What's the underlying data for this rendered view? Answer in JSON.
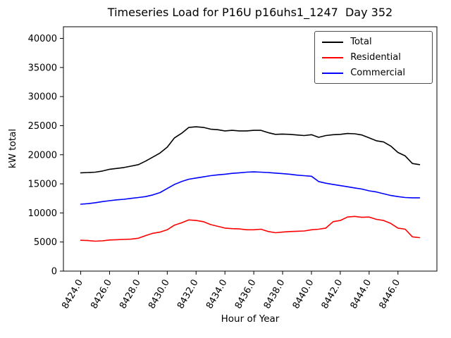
{
  "chart_data": {
    "type": "line",
    "title": "Timeseries Load for P16U p16uhs1_1247  Day 352",
    "xlabel": "Hour of Year",
    "ylabel": "kW total",
    "grid": false,
    "legend_position": "upper right",
    "xlim": [
      8422.8,
      8448.7
    ],
    "ylim": [
      0,
      42000
    ],
    "yticks": [
      0,
      5000,
      10000,
      15000,
      20000,
      25000,
      30000,
      35000,
      40000
    ],
    "ytick_labels": [
      "0",
      "5000",
      "10000",
      "15000",
      "20000",
      "25000",
      "30000",
      "35000",
      "40000"
    ],
    "xticks": [
      8424,
      8426,
      8428,
      8430,
      8432,
      8434,
      8436,
      8438,
      8440,
      8442,
      8444,
      8446
    ],
    "xtick_labels": [
      "8424.0",
      "8426.0",
      "8428.0",
      "8430.0",
      "8432.0",
      "8434.0",
      "8436.0",
      "8438.0",
      "8440.0",
      "8442.0",
      "8444.0",
      "8446.0"
    ],
    "x": [
      8424.0,
      8424.5,
      8425.0,
      8425.5,
      8426.0,
      8426.5,
      8427.0,
      8427.5,
      8428.0,
      8428.5,
      8429.0,
      8429.5,
      8430.0,
      8430.5,
      8431.0,
      8431.5,
      8432.0,
      8432.5,
      8433.0,
      8433.5,
      8434.0,
      8434.5,
      8435.0,
      8435.5,
      8436.0,
      8436.5,
      8437.0,
      8437.5,
      8438.0,
      8438.5,
      8439.0,
      8439.5,
      8440.0,
      8440.5,
      8441.0,
      8441.5,
      8442.0,
      8442.5,
      8443.0,
      8443.5,
      8444.0,
      8444.5,
      8445.0,
      8445.5,
      8446.0,
      8446.5,
      8447.0,
      8447.5
    ],
    "series": [
      {
        "name": "Total",
        "color": "#000000",
        "values": [
          16900,
          16950,
          17000,
          17200,
          17500,
          17650,
          17800,
          18050,
          18300,
          18900,
          19600,
          20300,
          21300,
          22900,
          23700,
          24700,
          24800,
          24700,
          24400,
          24300,
          24100,
          24200,
          24100,
          24100,
          24200,
          24200,
          23800,
          23500,
          23550,
          23500,
          23400,
          23300,
          23450,
          23000,
          23300,
          23450,
          23500,
          23650,
          23600,
          23400,
          22900,
          22400,
          22200,
          21500,
          20400,
          19800,
          18500,
          18300
        ]
      },
      {
        "name": "Residential",
        "color": "#ff0000",
        "values": [
          5300,
          5250,
          5150,
          5200,
          5350,
          5400,
          5450,
          5500,
          5650,
          6100,
          6500,
          6700,
          7100,
          7900,
          8300,
          8800,
          8700,
          8500,
          8000,
          7700,
          7400,
          7300,
          7250,
          7100,
          7100,
          7200,
          6800,
          6600,
          6700,
          6800,
          6850,
          6900,
          7100,
          7200,
          7400,
          8500,
          8700,
          9300,
          9400,
          9250,
          9300,
          8900,
          8700,
          8200,
          7400,
          7200,
          5900,
          5750
        ]
      },
      {
        "name": "Commercial",
        "color": "#0000ff",
        "values": [
          11500,
          11600,
          11750,
          11950,
          12100,
          12250,
          12350,
          12500,
          12650,
          12800,
          13100,
          13500,
          14200,
          14900,
          15400,
          15800,
          16000,
          16200,
          16400,
          16550,
          16650,
          16800,
          16900,
          17000,
          17050,
          17000,
          16950,
          16850,
          16750,
          16650,
          16500,
          16400,
          16300,
          15400,
          15100,
          14900,
          14700,
          14500,
          14300,
          14100,
          13800,
          13600,
          13300,
          13000,
          12800,
          12650,
          12600,
          12600
        ]
      }
    ]
  }
}
